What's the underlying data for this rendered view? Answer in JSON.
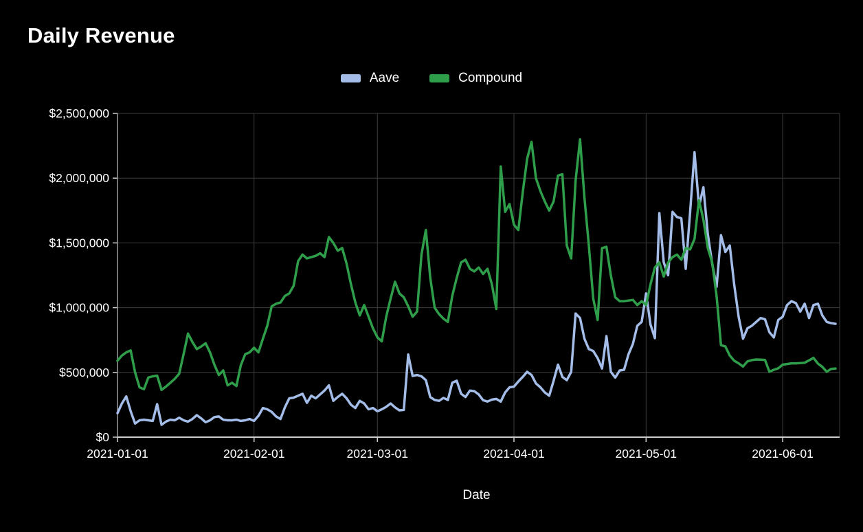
{
  "title": "Daily Revenue",
  "x_axis_title": "Date",
  "chart_data": {
    "type": "line",
    "title": "Daily Revenue",
    "xlabel": "Date",
    "ylabel": "",
    "x_unit": "day",
    "x_start": "2021-01-01",
    "x_end": "2021-06-13",
    "grid": true,
    "legend_position": "top-center",
    "ylim": [
      0,
      2500000
    ],
    "y_tick_values": [
      0,
      500000,
      1000000,
      1500000,
      2000000,
      2500000
    ],
    "y_tick_labels": [
      "$0",
      "$500,000",
      "$1,000,000",
      "$1,500,000",
      "$2,000,000",
      "$2,500,000"
    ],
    "x_tick_day_index": [
      0,
      31,
      59,
      90,
      120,
      151
    ],
    "x_tick_labels": [
      "2021-01-01",
      "2021-02-01",
      "2021-03-01",
      "2021-04-01",
      "2021-05-01",
      "2021-06-01"
    ],
    "colors": {
      "background": "#000000",
      "grid": "#3e3e3e",
      "axis": "#cfcfcf",
      "axis_left": "#9a9a9a",
      "text": "#ffffff"
    },
    "series": [
      {
        "name": "Aave",
        "color": "#a3bce8",
        "values": [
          185000,
          260000,
          315000,
          200000,
          105000,
          130000,
          135000,
          130000,
          125000,
          255000,
          95000,
          120000,
          135000,
          130000,
          150000,
          130000,
          120000,
          140000,
          170000,
          145000,
          115000,
          130000,
          155000,
          160000,
          135000,
          130000,
          130000,
          135000,
          125000,
          130000,
          140000,
          125000,
          165000,
          225000,
          215000,
          195000,
          160000,
          140000,
          230000,
          300000,
          305000,
          320000,
          335000,
          265000,
          320000,
          300000,
          330000,
          360000,
          400000,
          280000,
          310000,
          335000,
          300000,
          250000,
          225000,
          280000,
          260000,
          215000,
          225000,
          200000,
          215000,
          234000,
          260000,
          230000,
          207000,
          210000,
          638000,
          473000,
          480000,
          470000,
          440000,
          309000,
          287000,
          280000,
          303000,
          287000,
          420000,
          436000,
          335000,
          310000,
          360000,
          355000,
          330000,
          285000,
          275000,
          290000,
          295000,
          275000,
          345000,
          385000,
          390000,
          430000,
          465000,
          505000,
          480000,
          415000,
          385000,
          345000,
          320000,
          435000,
          560000,
          465000,
          440000,
          505000,
          955000,
          920000,
          760000,
          680000,
          665000,
          610000,
          530000,
          780000,
          505000,
          460000,
          515000,
          520000,
          640000,
          720000,
          860000,
          890000,
          1110000,
          870000,
          765000,
          1730000,
          1350000,
          1250000,
          1740000,
          1700000,
          1690000,
          1300000,
          1740000,
          2200000,
          1780000,
          1930000,
          1570000,
          1340000,
          1160000,
          1560000,
          1430000,
          1480000,
          1180000,
          930000,
          760000,
          840000,
          860000,
          890000,
          920000,
          910000,
          810000,
          770000,
          905000,
          930000,
          1020000,
          1050000,
          1035000,
          970000,
          1030000,
          920000,
          1020000,
          1030000,
          940000,
          890000,
          880000,
          875000
        ]
      },
      {
        "name": "Compound",
        "color": "#2f9e4a",
        "values": [
          590000,
          630000,
          655000,
          670000,
          500000,
          385000,
          370000,
          460000,
          470000,
          475000,
          365000,
          390000,
          420000,
          450000,
          490000,
          640000,
          800000,
          735000,
          680000,
          700000,
          725000,
          655000,
          560000,
          480000,
          515000,
          400000,
          420000,
          395000,
          555000,
          640000,
          655000,
          690000,
          655000,
          760000,
          860000,
          1010000,
          1030000,
          1040000,
          1090000,
          1110000,
          1170000,
          1360000,
          1410000,
          1380000,
          1390000,
          1400000,
          1420000,
          1390000,
          1545000,
          1500000,
          1440000,
          1460000,
          1340000,
          1180000,
          1040000,
          940000,
          1020000,
          930000,
          840000,
          770000,
          740000,
          930000,
          1070000,
          1200000,
          1110000,
          1080000,
          1010000,
          930000,
          970000,
          1410000,
          1600000,
          1230000,
          1000000,
          950000,
          915000,
          890000,
          1090000,
          1230000,
          1350000,
          1370000,
          1300000,
          1280000,
          1310000,
          1260000,
          1300000,
          1180000,
          990000,
          2090000,
          1740000,
          1800000,
          1640000,
          1600000,
          1890000,
          2150000,
          2280000,
          2000000,
          1900000,
          1820000,
          1750000,
          1820000,
          2020000,
          2030000,
          1480000,
          1380000,
          1980000,
          2300000,
          1850000,
          1480000,
          1070000,
          905000,
          1460000,
          1470000,
          1250000,
          1080000,
          1050000,
          1050000,
          1055000,
          1060000,
          1020000,
          1050000,
          1020000,
          1180000,
          1310000,
          1350000,
          1240000,
          1350000,
          1390000,
          1410000,
          1370000,
          1460000,
          1450000,
          1530000,
          1830000,
          1680000,
          1460000,
          1350000,
          1090000,
          710000,
          700000,
          630000,
          590000,
          570000,
          545000,
          585000,
          595000,
          600000,
          598000,
          596000,
          505000,
          520000,
          532000,
          560000,
          565000,
          570000,
          570000,
          572000,
          575000,
          593000,
          612000,
          568000,
          543000,
          505000,
          527000,
          530000
        ]
      }
    ]
  }
}
